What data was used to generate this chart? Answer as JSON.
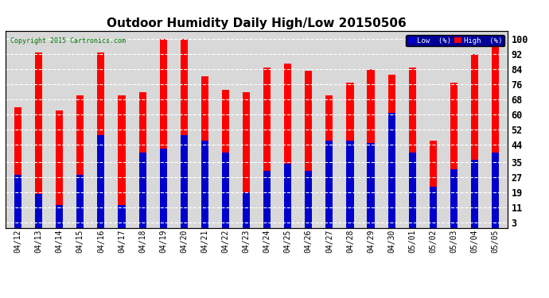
{
  "title": "Outdoor Humidity Daily High/Low 20150506",
  "copyright": "Copyright 2015 Cartronics.com",
  "dates": [
    "04/12",
    "04/13",
    "04/14",
    "04/15",
    "04/16",
    "04/17",
    "04/18",
    "04/19",
    "04/20",
    "04/21",
    "04/22",
    "04/23",
    "04/24",
    "04/25",
    "04/26",
    "04/27",
    "04/28",
    "04/29",
    "04/30",
    "05/01",
    "05/02",
    "05/03",
    "05/04",
    "05/05"
  ],
  "high_values": [
    64,
    93,
    62,
    70,
    93,
    70,
    72,
    100,
    100,
    80,
    73,
    72,
    85,
    87,
    83,
    70,
    77,
    84,
    81,
    85,
    46,
    77,
    92,
    100
  ],
  "low_values": [
    28,
    18,
    12,
    28,
    49,
    12,
    40,
    42,
    49,
    46,
    40,
    19,
    30,
    34,
    30,
    46,
    46,
    45,
    61,
    40,
    22,
    31,
    36,
    40
  ],
  "high_color": "#FF0000",
  "low_color": "#0000CC",
  "bg_color": "#FFFFFF",
  "plot_bg_color": "#D8D8D8",
  "yticks": [
    3,
    11,
    19,
    27,
    35,
    44,
    52,
    60,
    68,
    76,
    84,
    92,
    100
  ],
  "ylim": [
    0,
    104
  ],
  "title_fontsize": 11,
  "tick_fontsize": 7,
  "legend_label_low": "Low  (%)",
  "legend_label_high": "High  (%)"
}
